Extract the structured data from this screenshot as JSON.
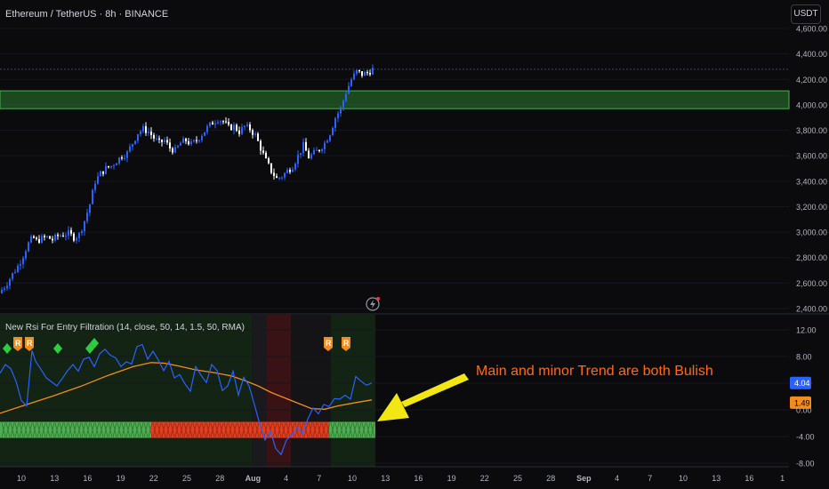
{
  "header": {
    "title": "Ethereum / TetherUS · 8h · BINANCE",
    "currency": "USDT"
  },
  "indicator": {
    "title": "New Rsi For Entry Filtration (14, close, 50, 14, 1.5, 50, RMA)",
    "rsi_value_label": "4.04",
    "ma_value_label": "1.49"
  },
  "annotation": {
    "text": "Main and minor Trend are both Bulish",
    "color": "#ff6a1a",
    "arrow_color": "#f2e613"
  },
  "colors": {
    "bull": "#2962ff",
    "bear": "#ffffff",
    "zone": "#2e7d32",
    "rsi_line": "#2962ff",
    "ma_line": "#f28c1c",
    "bull_band": "#4caf50",
    "bear_band": "#e53e1f"
  },
  "chart_data": [
    {
      "type": "candlestick",
      "title": "Ethereum / TetherUS · 8h · BINANCE",
      "ylabel": "USDT",
      "ylim": [
        2400,
        4600
      ],
      "y_ticks": [
        "4,600.00",
        "4,400.00",
        "4,200.00",
        "4,000.00",
        "3,800.00",
        "3,600.00",
        "3,400.00",
        "3,200.00",
        "3,000.00",
        "2,800.00",
        "2,600.00",
        "2,400.00"
      ],
      "x_ticks": [
        "10",
        "13",
        "16",
        "19",
        "22",
        "25",
        "28",
        "Aug",
        "4",
        "7",
        "10",
        "13",
        "16",
        "19",
        "22",
        "25",
        "28",
        "Sep",
        "4",
        "7",
        "10",
        "13",
        "16",
        "1"
      ],
      "resistance_zone": [
        3970,
        4110
      ],
      "dotted_level": 4280,
      "close_path": [
        [
          0,
          2540
        ],
        [
          6,
          2590
        ],
        [
          12,
          2660
        ],
        [
          18,
          2720
        ],
        [
          24,
          2800
        ],
        [
          30,
          2900
        ],
        [
          36,
          2960
        ],
        [
          40,
          2930
        ],
        [
          46,
          2950
        ],
        [
          52,
          2960
        ],
        [
          58,
          2940
        ],
        [
          64,
          2970
        ],
        [
          70,
          2980
        ],
        [
          76,
          2990
        ],
        [
          82,
          2960
        ],
        [
          88,
          2980
        ],
        [
          94,
          3090
        ],
        [
          100,
          3220
        ],
        [
          106,
          3400
        ],
        [
          112,
          3460
        ],
        [
          118,
          3500
        ],
        [
          124,
          3520
        ],
        [
          130,
          3560
        ],
        [
          136,
          3600
        ],
        [
          142,
          3620
        ],
        [
          148,
          3700
        ],
        [
          154,
          3780
        ],
        [
          160,
          3810
        ],
        [
          166,
          3790
        ],
        [
          172,
          3740
        ],
        [
          178,
          3700
        ],
        [
          184,
          3720
        ],
        [
          190,
          3660
        ],
        [
          196,
          3640
        ],
        [
          202,
          3700
        ],
        [
          208,
          3720
        ],
        [
          214,
          3690
        ],
        [
          220,
          3720
        ],
        [
          226,
          3770
        ],
        [
          232,
          3820
        ],
        [
          238,
          3860
        ],
        [
          244,
          3890
        ],
        [
          250,
          3870
        ],
        [
          256,
          3820
        ],
        [
          262,
          3830
        ],
        [
          268,
          3790
        ],
        [
          274,
          3830
        ],
        [
          280,
          3810
        ],
        [
          286,
          3760
        ],
        [
          292,
          3660
        ],
        [
          298,
          3560
        ],
        [
          304,
          3480
        ],
        [
          310,
          3420
        ],
        [
          316,
          3440
        ],
        [
          322,
          3480
        ],
        [
          328,
          3520
        ],
        [
          334,
          3600
        ],
        [
          340,
          3680
        ],
        [
          346,
          3590
        ],
        [
          352,
          3620
        ],
        [
          358,
          3650
        ],
        [
          364,
          3700
        ],
        [
          370,
          3780
        ],
        [
          376,
          3900
        ],
        [
          382,
          3970
        ],
        [
          388,
          4100
        ],
        [
          394,
          4200
        ],
        [
          400,
          4260
        ],
        [
          406,
          4240
        ],
        [
          412,
          4250
        ],
        [
          418,
          4280
        ]
      ]
    },
    {
      "type": "line",
      "title": "New Rsi For Entry Filtration (14, close, 50, 14, 1.5, 50, RMA)",
      "ylim": [
        -8,
        12
      ],
      "y_ticks": [
        "12.00",
        "8.00",
        "4.00",
        "0.00",
        "-4.00",
        "-8.00"
      ],
      "series": [
        {
          "values": [
            [
              0,
              5.5
            ],
            [
              6,
              6.8
            ],
            [
              12,
              6.2
            ],
            [
              18,
              4.3
            ],
            [
              24,
              1.4
            ],
            [
              30,
              0.6
            ],
            [
              36,
              8.9
            ],
            [
              40,
              7.3
            ],
            [
              46,
              6.1
            ],
            [
              52,
              4.8
            ],
            [
              58,
              4.2
            ],
            [
              64,
              3.6
            ],
            [
              70,
              4.7
            ],
            [
              76,
              5.9
            ],
            [
              82,
              6.8
            ],
            [
              88,
              5.8
            ],
            [
              94,
              7.6
            ],
            [
              100,
              7.9
            ],
            [
              106,
              6.5
            ],
            [
              112,
              8.4
            ],
            [
              118,
              9.1
            ],
            [
              124,
              8.2
            ],
            [
              130,
              7.8
            ],
            [
              136,
              6.5
            ],
            [
              142,
              7.2
            ],
            [
              148,
              6.9
            ],
            [
              154,
              9.5
            ],
            [
              160,
              9.8
            ],
            [
              166,
              7.6
            ],
            [
              172,
              8.8
            ],
            [
              178,
              7.5
            ],
            [
              184,
              5.9
            ],
            [
              190,
              7.3
            ],
            [
              196,
              4.8
            ],
            [
              202,
              5.3
            ],
            [
              208,
              3.9
            ],
            [
              214,
              2.8
            ],
            [
              220,
              6.5
            ],
            [
              226,
              5.2
            ],
            [
              232,
              4.1
            ],
            [
              238,
              6.8
            ],
            [
              244,
              5.9
            ],
            [
              250,
              2.9
            ],
            [
              256,
              3.6
            ],
            [
              262,
              5.8
            ],
            [
              268,
              2.2
            ],
            [
              274,
              4.9
            ],
            [
              280,
              3.6
            ],
            [
              286,
              0.8
            ],
            [
              292,
              -2.1
            ],
            [
              298,
              -4.5
            ],
            [
              304,
              -3.2
            ],
            [
              310,
              -5.8
            ],
            [
              316,
              -6.7
            ],
            [
              322,
              -4.5
            ],
            [
              328,
              -3.8
            ],
            [
              334,
              -2.6
            ],
            [
              340,
              -3.5
            ],
            [
              346,
              -1.4
            ],
            [
              352,
              0.3
            ],
            [
              358,
              -0.6
            ],
            [
              364,
              0.8
            ],
            [
              370,
              0.5
            ],
            [
              376,
              1.7
            ],
            [
              382,
              1.6
            ],
            [
              388,
              2.2
            ],
            [
              394,
              1.6
            ],
            [
              400,
              5.0
            ],
            [
              406,
              4.3
            ],
            [
              412,
              3.7
            ],
            [
              418,
              4.04
            ]
          ]
        },
        {
          "values": [
            [
              0,
              -0.5
            ],
            [
              30,
              0.8
            ],
            [
              60,
              2.1
            ],
            [
              90,
              3.5
            ],
            [
              120,
              5.1
            ],
            [
              150,
              6.5
            ],
            [
              170,
              7.1
            ],
            [
              185,
              7.0
            ],
            [
              200,
              6.6
            ],
            [
              220,
              6.0
            ],
            [
              240,
              5.6
            ],
            [
              260,
              5.1
            ],
            [
              275,
              4.4
            ],
            [
              290,
              3.6
            ],
            [
              305,
              2.6
            ],
            [
              320,
              1.8
            ],
            [
              335,
              1.0
            ],
            [
              350,
              0.2
            ],
            [
              365,
              0.1
            ],
            [
              380,
              0.6
            ],
            [
              400,
              1.1
            ],
            [
              418,
              1.49
            ]
          ]
        }
      ],
      "markers": [
        "diamond",
        "R",
        "R",
        "diamond",
        "diamond",
        "diamond",
        "R",
        "R"
      ],
      "bands": {
        "bullish_until": 170,
        "bearish_until": 370,
        "end": 422
      }
    }
  ]
}
